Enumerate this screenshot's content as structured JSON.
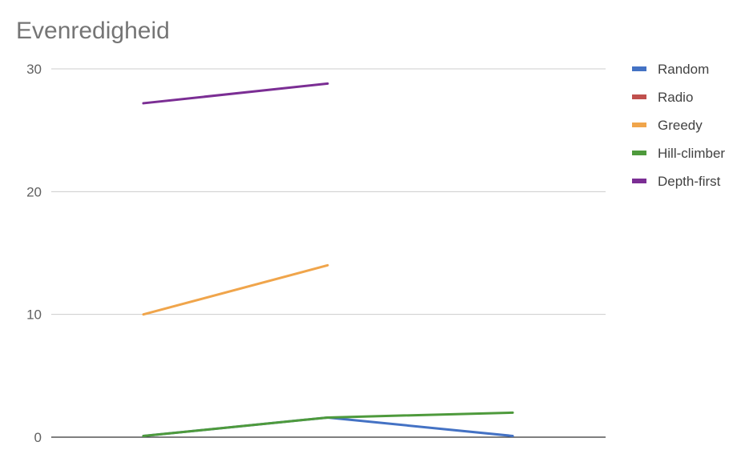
{
  "chart_data": {
    "type": "line",
    "title": "Evenredigheid",
    "xlabel": "",
    "ylabel": "",
    "categories": [
      "",
      "",
      ""
    ],
    "ylim": [
      0,
      30
    ],
    "yticks": [
      "0",
      "10",
      "20",
      "30"
    ],
    "grid": true,
    "legend_position": "right",
    "series": [
      {
        "name": "Random",
        "color": "#4472C4",
        "values": [
          0.1,
          1.6,
          0.1
        ]
      },
      {
        "name": "Radio",
        "color": "#C0504D",
        "values": [
          null,
          null,
          null
        ]
      },
      {
        "name": "Greedy",
        "color": "#F0A54B",
        "values": [
          10,
          14,
          null
        ]
      },
      {
        "name": "Hill-climber",
        "color": "#4E9A3C",
        "values": [
          0.1,
          1.6,
          2.0
        ]
      },
      {
        "name": "Depth-first",
        "color": "#7B2E94",
        "values": [
          27.2,
          28.8,
          null
        ]
      }
    ]
  }
}
